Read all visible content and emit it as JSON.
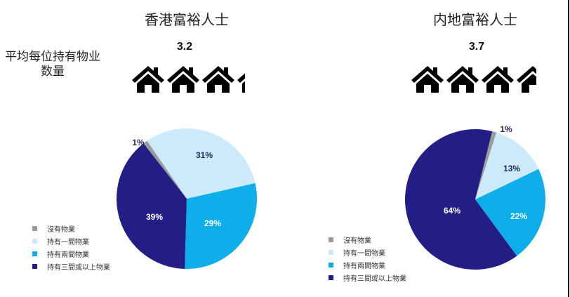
{
  "row_label": {
    "line1": "平均每位持有物业",
    "line2": "数量"
  },
  "colors": {
    "none": "#9b9b9b",
    "one": "#cdeafb",
    "two": "#0eaeea",
    "three_plus": "#221e86",
    "label_dark": "#1f2a5a",
    "label_light": "#ffffff"
  },
  "legend": [
    {
      "label": "沒有物業",
      "color": "#9b9b9b"
    },
    {
      "label": "持有一間物業",
      "color": "#cdeafb"
    },
    {
      "label": "持有兩間物業",
      "color": "#0eaeea"
    },
    {
      "label": "持有三間或以上物業",
      "color": "#221e86"
    }
  ],
  "panels": [
    {
      "title": "香港富裕人士",
      "avg_properties": "3.2",
      "house_icon": "house-icon",
      "slice_labels": [
        "1%",
        "31%",
        "29%",
        "39%"
      ]
    },
    {
      "title": "内地富裕人士",
      "avg_properties": "3.7",
      "house_icon": "house-icon",
      "slice_labels": [
        "1%",
        "13%",
        "22%",
        "64%"
      ]
    }
  ],
  "chart_data": [
    {
      "type": "pie",
      "title": "香港富裕人士",
      "subtitle": "平均每位持有物业数量: 3.2",
      "categories": [
        "沒有物業",
        "持有一間物業",
        "持有兩間物業",
        "持有三間或以上物業"
      ],
      "values": [
        1,
        31,
        29,
        39
      ],
      "unit": "%",
      "start_angle_deg_clockwise_from_top": 322,
      "legend_position": "bottom-left"
    },
    {
      "type": "pie",
      "title": "内地富裕人士",
      "subtitle": "平均每位持有物业数量: 3.7",
      "categories": [
        "沒有物業",
        "持有一間物業",
        "持有兩間物業",
        "持有三間或以上物業"
      ],
      "values": [
        1,
        13,
        22,
        64
      ],
      "unit": "%",
      "start_angle_deg_clockwise_from_top": 14,
      "legend_position": "bottom-left"
    }
  ]
}
